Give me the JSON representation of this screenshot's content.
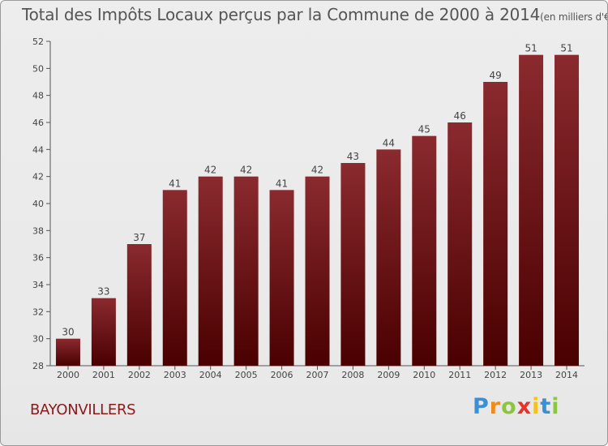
{
  "header": {
    "title": "Total des Impôts Locaux perçus par la Commune de 2000 à 2014",
    "unit": "(en milliers d'€)"
  },
  "footer": {
    "commune": "BAYONVILLERS",
    "logo_letters": [
      {
        "ch": "P",
        "color": "#3b8fd4"
      },
      {
        "ch": "r",
        "color": "#f08a1c"
      },
      {
        "ch": "o",
        "color": "#8cc63f"
      },
      {
        "ch": "x",
        "color": "#e8312b"
      },
      {
        "ch": "i",
        "color": "#f6c11a"
      },
      {
        "ch": "t",
        "color": "#3b8fd4"
      },
      {
        "ch": "i",
        "color": "#8cc63f"
      }
    ]
  },
  "chart_data": {
    "type": "bar",
    "title": "Total des Impôts Locaux perçus par la Commune de 2000 à 2014",
    "ylabel": "en milliers d'€",
    "xlabel": "",
    "categories": [
      "2000",
      "2001",
      "2002",
      "2003",
      "2004",
      "2005",
      "2006",
      "2007",
      "2008",
      "2009",
      "2010",
      "2011",
      "2012",
      "2013",
      "2014"
    ],
    "values": [
      30,
      33,
      37,
      41,
      42,
      42,
      41,
      42,
      43,
      44,
      45,
      46,
      49,
      51,
      51
    ],
    "ylim": [
      28,
      52
    ],
    "yticks": [
      28,
      30,
      32,
      34,
      36,
      38,
      40,
      42,
      44,
      46,
      48,
      50,
      52
    ],
    "grid": false,
    "bar_color_top": "#8a2a2f",
    "bar_color_bottom": "#4a0000"
  }
}
